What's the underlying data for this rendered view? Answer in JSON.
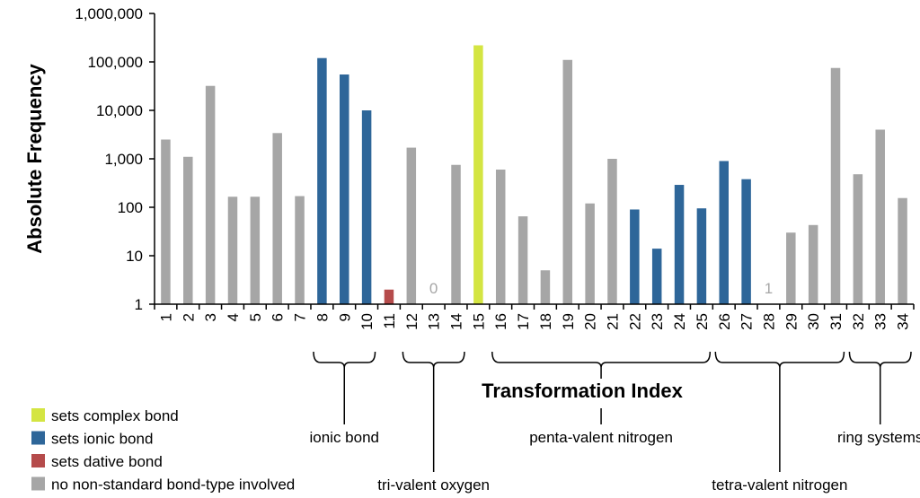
{
  "chart_data": {
    "type": "bar",
    "ylabel": "Absolute Frequency",
    "xlabel": "Transformation Index",
    "yscale": "log",
    "ylim": [
      1,
      1000000
    ],
    "ytick_labels": [
      "1",
      "10",
      "100",
      "1,000",
      "10,000",
      "100,000",
      "1,000,000"
    ],
    "categories": [
      "1",
      "2",
      "3",
      "4",
      "5",
      "6",
      "7",
      "8",
      "9",
      "10",
      "11",
      "12",
      "13",
      "14",
      "15",
      "16",
      "17",
      "18",
      "19",
      "20",
      "21",
      "22",
      "23",
      "24",
      "25",
      "26",
      "27",
      "28",
      "29",
      "30",
      "31",
      "32",
      "33",
      "34"
    ],
    "values": [
      2500,
      1100,
      32000,
      165,
      165,
      3400,
      170,
      120000,
      55000,
      10000,
      2,
      1700,
      0,
      750,
      220000,
      600,
      65,
      5,
      110000,
      120,
      1000,
      90,
      14,
      290,
      95,
      900,
      380,
      1,
      30,
      43,
      75000,
      480,
      4000,
      155
    ],
    "bar_types": [
      "none",
      "none",
      "none",
      "none",
      "none",
      "none",
      "none",
      "ionic",
      "ionic",
      "ionic",
      "dative",
      "none",
      "none",
      "none",
      "complex",
      "none",
      "none",
      "none",
      "none",
      "none",
      "none",
      "ionic",
      "ionic",
      "ionic",
      "ionic",
      "ionic",
      "ionic",
      "none",
      "none",
      "none",
      "none",
      "none",
      "none",
      "none"
    ],
    "value_labels": [
      {
        "index": 13,
        "text": "0"
      },
      {
        "index": 28,
        "text": "1"
      }
    ],
    "colors": {
      "complex": "#d4e542",
      "ionic": "#2e6699",
      "dative": "#b54b4b",
      "none": "#a6a6a6"
    },
    "legend": [
      {
        "type": "complex",
        "label": "sets complex bond"
      },
      {
        "type": "ionic",
        "label": "sets ionic bond"
      },
      {
        "type": "dative",
        "label": "sets dative bond"
      },
      {
        "type": "none",
        "label": "no non-standard bond-type involved"
      }
    ],
    "groups": [
      {
        "label": "ionic bond",
        "from": 8,
        "to": 10
      },
      {
        "label": "tri-valent oxygen",
        "from": 12,
        "to": 14
      },
      {
        "label": "penta-valent nitrogen",
        "from": 16,
        "to": 25
      },
      {
        "label": "tetra-valent nitrogen",
        "from": 26,
        "to": 31
      },
      {
        "label": "ring systems",
        "from": 32,
        "to": 34
      }
    ]
  }
}
